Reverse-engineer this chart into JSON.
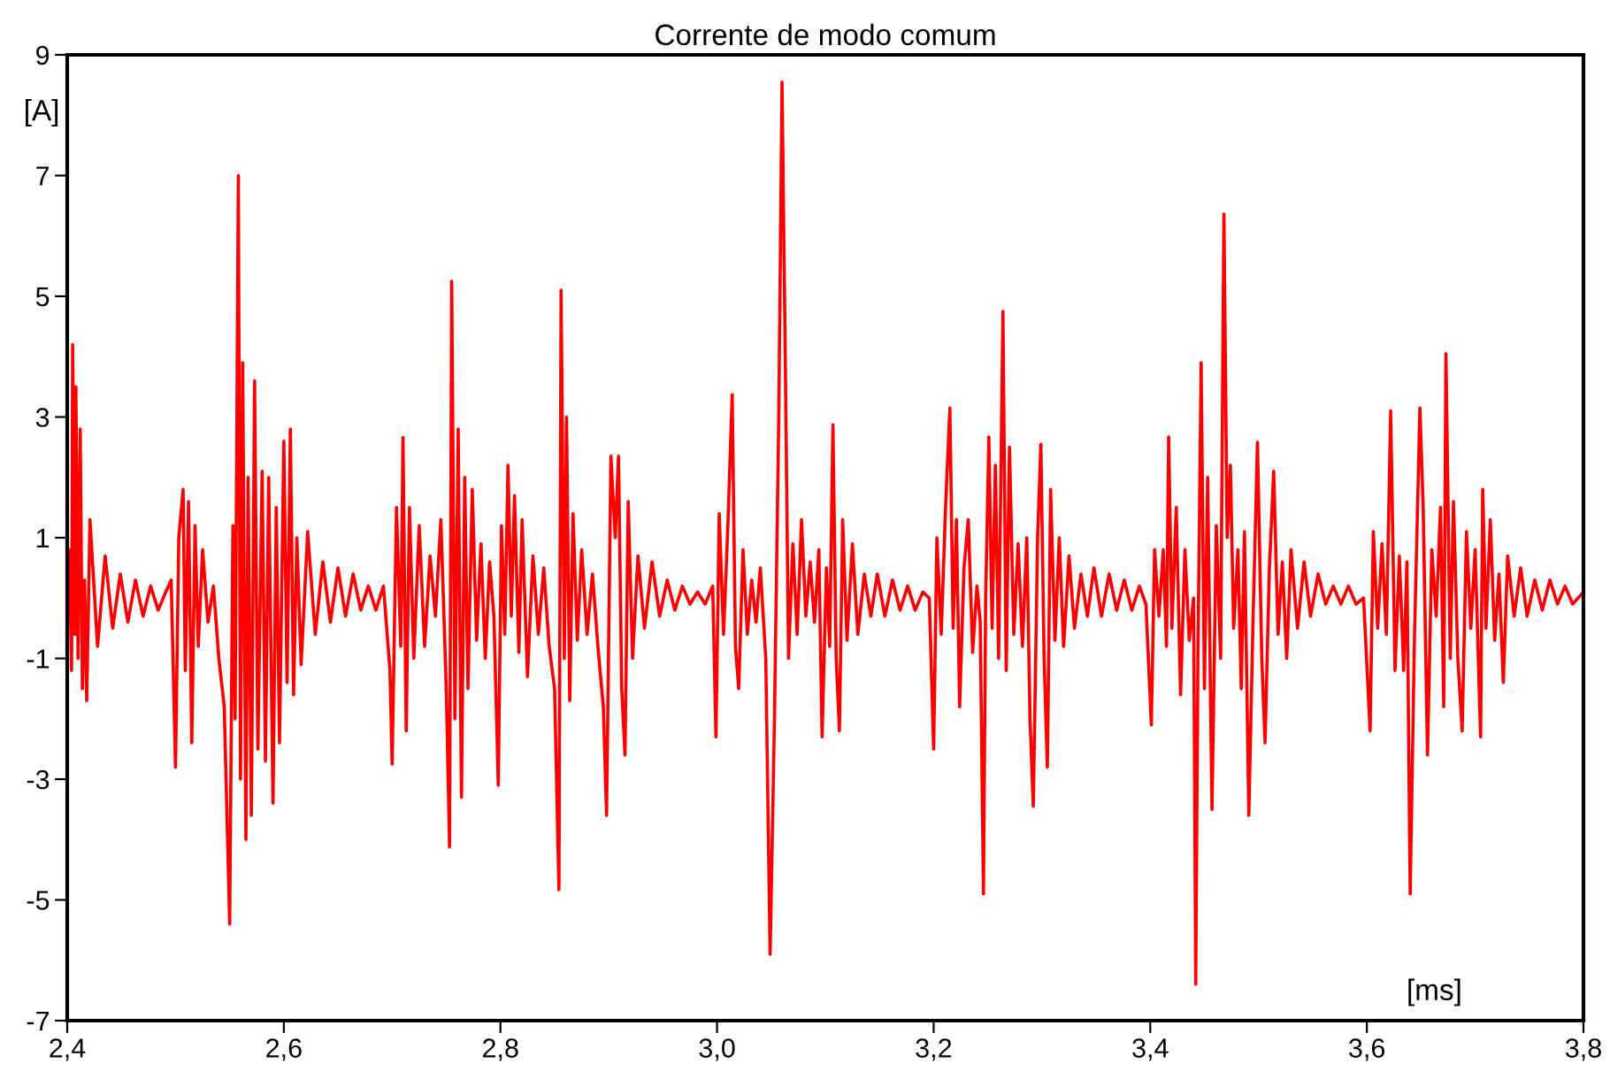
{
  "chart_data": {
    "type": "line",
    "title": "Corrente de modo comum",
    "xlabel": "[ms]",
    "ylabel": "[A]",
    "xlim": [
      2.4,
      3.8
    ],
    "ylim": [
      -7,
      9
    ],
    "xticks": [
      {
        "value": 2.4,
        "label": "2,4"
      },
      {
        "value": 2.6,
        "label": "2,6"
      },
      {
        "value": 2.8,
        "label": "2,8"
      },
      {
        "value": 3.0,
        "label": "3,0"
      },
      {
        "value": 3.2,
        "label": "3,2"
      },
      {
        "value": 3.4,
        "label": "3,4"
      },
      {
        "value": 3.6,
        "label": "3,6"
      },
      {
        "value": 3.8,
        "label": "3,8"
      }
    ],
    "yticks": [
      -7,
      -5,
      -3,
      -1,
      1,
      3,
      5,
      7,
      9
    ],
    "grid": false,
    "marker": "none",
    "line_style": "solid",
    "series": [
      {
        "color": "#ff0000",
        "x": [
          2.4,
          2.402,
          2.404,
          2.405,
          2.407,
          2.408,
          2.41,
          2.412,
          2.414,
          2.416,
          2.418,
          2.421,
          2.428,
          2.435,
          2.442,
          2.449,
          2.456,
          2.463,
          2.47,
          2.477,
          2.484,
          2.491,
          2.496,
          2.5,
          2.503,
          2.507,
          2.509,
          2.512,
          2.515,
          2.518,
          2.521,
          2.525,
          2.53,
          2.535,
          2.54,
          2.545,
          2.55,
          2.553,
          2.555,
          2.558,
          2.56,
          2.562,
          2.565,
          2.567,
          2.57,
          2.573,
          2.576,
          2.58,
          2.583,
          2.586,
          2.59,
          2.593,
          2.596,
          2.6,
          2.603,
          2.606,
          2.609,
          2.612,
          2.616,
          2.622,
          2.629,
          2.636,
          2.643,
          2.65,
          2.657,
          2.664,
          2.671,
          2.678,
          2.685,
          2.692,
          2.698,
          2.7,
          2.704,
          2.708,
          2.71,
          2.713,
          2.716,
          2.72,
          2.725,
          2.73,
          2.735,
          2.74,
          2.745,
          2.75,
          2.753,
          2.755,
          2.758,
          2.761,
          2.764,
          2.767,
          2.77,
          2.774,
          2.778,
          2.782,
          2.786,
          2.79,
          2.794,
          2.798,
          2.801,
          2.804,
          2.807,
          2.81,
          2.813,
          2.817,
          2.82,
          2.825,
          2.83,
          2.835,
          2.84,
          2.845,
          2.85,
          2.854,
          2.856,
          2.859,
          2.861,
          2.864,
          2.867,
          2.871,
          2.875,
          2.88,
          2.885,
          2.89,
          2.895,
          2.898,
          2.902,
          2.906,
          2.909,
          2.912,
          2.915,
          2.918,
          2.922,
          2.927,
          2.933,
          2.94,
          2.947,
          2.954,
          2.961,
          2.968,
          2.975,
          2.982,
          2.989,
          2.996,
          2.999,
          3.002,
          3.006,
          3.01,
          3.014,
          3.017,
          3.02,
          3.024,
          3.028,
          3.032,
          3.036,
          3.04,
          3.045,
          3.049,
          3.053,
          3.057,
          3.06,
          3.063,
          3.066,
          3.07,
          3.074,
          3.078,
          3.082,
          3.086,
          3.09,
          3.094,
          3.097,
          3.101,
          3.104,
          3.107,
          3.11,
          3.113,
          3.116,
          3.12,
          3.125,
          3.13,
          3.136,
          3.142,
          3.148,
          3.155,
          3.162,
          3.169,
          3.176,
          3.183,
          3.19,
          3.196,
          3.2,
          3.203,
          3.207,
          3.211,
          3.215,
          3.218,
          3.221,
          3.224,
          3.228,
          3.232,
          3.236,
          3.24,
          3.243,
          3.246,
          3.248,
          3.251,
          3.254,
          3.257,
          3.26,
          3.264,
          3.267,
          3.27,
          3.274,
          3.278,
          3.282,
          3.286,
          3.289,
          3.292,
          3.296,
          3.299,
          3.302,
          3.305,
          3.308,
          3.312,
          3.316,
          3.32,
          3.325,
          3.33,
          3.336,
          3.342,
          3.348,
          3.355,
          3.362,
          3.369,
          3.376,
          3.383,
          3.39,
          3.396,
          3.401,
          3.404,
          3.408,
          3.412,
          3.415,
          3.417,
          3.42,
          3.424,
          3.428,
          3.432,
          3.436,
          3.44,
          3.442,
          3.444,
          3.447,
          3.45,
          3.453,
          3.457,
          3.461,
          3.465,
          3.468,
          3.471,
          3.474,
          3.477,
          3.481,
          3.484,
          3.487,
          3.491,
          3.495,
          3.499,
          3.503,
          3.506,
          3.51,
          3.514,
          3.518,
          3.522,
          3.526,
          3.53,
          3.536,
          3.542,
          3.548,
          3.555,
          3.562,
          3.569,
          3.576,
          3.583,
          3.59,
          3.597,
          3.603,
          3.606,
          3.61,
          3.614,
          3.618,
          3.622,
          3.626,
          3.63,
          3.634,
          3.637,
          3.64,
          3.644,
          3.649,
          3.652,
          3.656,
          3.66,
          3.664,
          3.668,
          3.671,
          3.673,
          3.677,
          3.68,
          3.684,
          3.688,
          3.692,
          3.696,
          3.7,
          3.705,
          3.707,
          3.71,
          3.714,
          3.718,
          3.722,
          3.726,
          3.73,
          3.736,
          3.742,
          3.748,
          3.755,
          3.762,
          3.769,
          3.776,
          3.783,
          3.79,
          3.8
        ],
        "values": [
          -0.5,
          0.8,
          -1.2,
          4.2,
          -0.6,
          3.5,
          -1.0,
          2.8,
          -1.5,
          0.3,
          -1.7,
          1.3,
          -0.8,
          0.7,
          -0.5,
          0.4,
          -0.4,
          0.3,
          -0.3,
          0.2,
          -0.2,
          0.1,
          0.3,
          -2.8,
          1.0,
          1.8,
          -1.2,
          1.6,
          -2.4,
          1.2,
          -0.8,
          0.8,
          -0.4,
          0.2,
          -1.0,
          -1.8,
          -5.4,
          1.2,
          -2.0,
          7.0,
          -3.0,
          3.9,
          -4.0,
          2.0,
          -3.6,
          3.6,
          -2.5,
          2.1,
          -2.7,
          2.0,
          -3.4,
          1.5,
          -2.4,
          2.6,
          -1.4,
          2.8,
          -1.6,
          1.0,
          -1.1,
          1.1,
          -0.6,
          0.6,
          -0.4,
          0.5,
          -0.3,
          0.4,
          -0.2,
          0.2,
          -0.2,
          0.2,
          -1.2,
          -2.75,
          1.5,
          -0.8,
          2.66,
          -2.2,
          1.5,
          -1.0,
          1.2,
          -0.8,
          0.7,
          -0.3,
          1.3,
          -1.5,
          -4.12,
          5.25,
          -2.0,
          2.8,
          -3.3,
          2.0,
          -1.5,
          1.8,
          -0.7,
          0.9,
          -1.0,
          0.6,
          -0.3,
          -3.1,
          1.2,
          -0.6,
          2.2,
          -0.3,
          1.7,
          -0.9,
          1.3,
          -1.3,
          0.7,
          -0.6,
          0.5,
          -0.8,
          -1.5,
          -4.83,
          5.1,
          -1.0,
          3.0,
          -1.7,
          1.4,
          -0.7,
          0.8,
          -0.6,
          0.4,
          -0.8,
          -1.8,
          -3.6,
          2.35,
          1.0,
          2.35,
          -1.5,
          -2.6,
          1.6,
          -1.0,
          0.7,
          -0.5,
          0.6,
          -0.3,
          0.3,
          -0.2,
          0.2,
          -0.1,
          0.1,
          -0.1,
          0.2,
          -2.3,
          1.4,
          -0.6,
          1.2,
          3.37,
          -0.8,
          -1.5,
          0.8,
          -0.6,
          0.3,
          -0.4,
          0.5,
          -1.0,
          -5.9,
          -2.0,
          3.0,
          8.55,
          4.0,
          -1.0,
          0.9,
          -0.6,
          1.3,
          -0.3,
          0.6,
          -0.4,
          0.8,
          -2.3,
          0.5,
          -0.8,
          2.87,
          -1.0,
          -2.2,
          1.3,
          -0.7,
          0.9,
          -0.6,
          0.4,
          -0.3,
          0.4,
          -0.3,
          0.3,
          -0.2,
          0.2,
          -0.2,
          0.1,
          0.0,
          -2.5,
          1.0,
          -0.6,
          1.5,
          3.15,
          -0.5,
          1.3,
          -1.8,
          0.5,
          1.3,
          -0.9,
          0.2,
          -0.4,
          -4.9,
          0.0,
          2.67,
          -0.5,
          2.2,
          -1.0,
          4.75,
          -1.2,
          2.5,
          -0.6,
          0.9,
          -0.8,
          1.0,
          -2.0,
          -3.45,
          1.0,
          2.55,
          -1.0,
          -2.8,
          1.8,
          -0.7,
          1.0,
          -0.8,
          0.7,
          -0.5,
          0.4,
          -0.3,
          0.5,
          -0.3,
          0.4,
          -0.2,
          0.3,
          -0.2,
          0.2,
          -0.1,
          -2.1,
          0.8,
          -0.3,
          0.8,
          -0.8,
          2.67,
          -0.5,
          1.5,
          -1.6,
          0.8,
          -0.7,
          0.0,
          -6.4,
          -1.0,
          3.9,
          -1.5,
          2.0,
          -3.5,
          1.2,
          -1.0,
          6.36,
          1.0,
          2.2,
          -0.5,
          0.8,
          -1.5,
          1.1,
          -3.6,
          -0.3,
          2.58,
          -1.0,
          -2.4,
          0.5,
          2.1,
          -0.6,
          0.6,
          -1.0,
          0.8,
          -0.5,
          0.6,
          -0.3,
          0.4,
          -0.1,
          0.2,
          -0.1,
          0.2,
          -0.1,
          0.0,
          -2.2,
          1.1,
          -0.5,
          0.9,
          -0.6,
          3.1,
          -1.2,
          0.7,
          -1.2,
          0.6,
          -4.9,
          -0.6,
          3.15,
          1.5,
          -2.6,
          0.8,
          -0.3,
          1.5,
          -1.8,
          4.05,
          -1.0,
          1.6,
          -1.0,
          -2.2,
          1.1,
          -0.5,
          0.8,
          -2.3,
          1.8,
          -0.5,
          1.3,
          -0.7,
          0.4,
          -1.4,
          0.7,
          -0.3,
          0.5,
          -0.3,
          0.3,
          -0.2,
          0.3,
          -0.1,
          0.2,
          -0.1,
          0.1
        ]
      }
    ]
  }
}
